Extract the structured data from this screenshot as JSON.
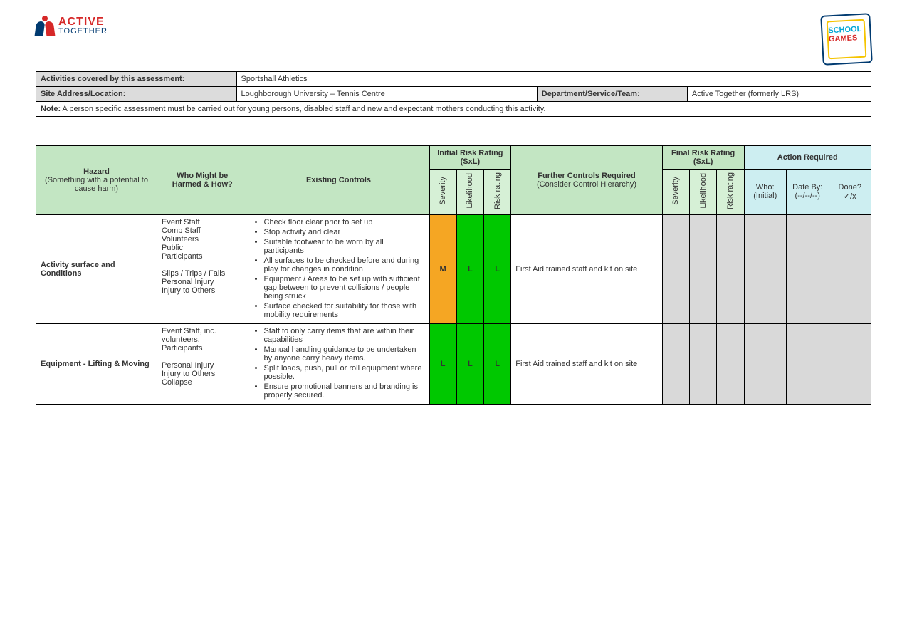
{
  "logos": {
    "active": "ACTIVE",
    "together": "TOGETHER",
    "school": "SCHOOL",
    "games": "GAMES"
  },
  "meta": {
    "row1_label": "Activities covered by this assessment:",
    "row1_value": "Sportshall Athletics",
    "row2_label": "Site Address/Location:",
    "row2_value": "Loughborough University – Tennis Centre",
    "row2_label2": "Department/Service/Team:",
    "row2_value2": "Active Together (formerly LRS)",
    "note_label": "Note:",
    "note_text": " A person specific assessment must be carried out for young persons, disabled staff and new and expectant mothers conducting this activity."
  },
  "headers": {
    "hazard": "Hazard",
    "hazard_sub": "(Something with a potential to cause harm)",
    "who": "Who Might be Harmed & How?",
    "existing": "Existing Controls",
    "initial": "Initial Risk Rating (SxL)",
    "final": "Final Risk Rating (SxL)",
    "sev": "Severity",
    "lik": "Likelihood",
    "rr": "Risk rating",
    "further": "Further Controls Required",
    "further_sub": "(Consider Control Hierarchy)",
    "action": "Action Required",
    "who_init": "Who: (Initial)",
    "date_by": "Date By: (--/--/--)",
    "done": "Done? ✓/x"
  },
  "rows": [
    {
      "hazard": "Activity surface and Conditions",
      "who_list": [
        "Event Staff",
        "Comp Staff",
        "Volunteers",
        "Public",
        "Participants",
        "",
        "Slips / Trips / Falls",
        "Personal Injury",
        "Injury to Others"
      ],
      "controls": [
        "Check floor clear prior to set up",
        "Stop activity and clear",
        "Suitable footwear to be worn by all participants",
        "All surfaces to be checked before and during play for changes in condition",
        "Equipment / Areas to be set up with sufficient gap between to prevent collisions / people being struck",
        "Surface checked for suitability for those with mobility requirements"
      ],
      "sev": "M",
      "lik": "L",
      "rr": "L",
      "sev_bg": "bg-M",
      "lik_bg": "bg-L",
      "rr_bg": "bg-L",
      "further": "First Aid trained staff and kit on site"
    },
    {
      "hazard": "Equipment - Lifting & Moving",
      "who_list": [
        "Event Staff, inc. volunteers,",
        "Participants",
        "",
        "Personal Injury",
        "Injury to Others",
        "Collapse"
      ],
      "controls": [
        "Staff to only carry items that are within their capabilities",
        "Manual handling guidance to be undertaken by anyone carry heavy items.",
        "Split loads, push, pull or roll equipment where possible.",
        "Ensure promotional banners and branding is properly secured."
      ],
      "sev": "L",
      "lik": "L",
      "rr": "L",
      "sev_bg": "bg-L",
      "lik_bg": "bg-L",
      "rr_bg": "bg-L",
      "further": "First Aid trained staff and kit on site"
    }
  ],
  "colors": {
    "M": "#f5a623",
    "L": "#00c800",
    "grey": "#d9d9d9",
    "hdr_green": "#c3e6c3",
    "hdr_cyan": "#cdeef1"
  }
}
